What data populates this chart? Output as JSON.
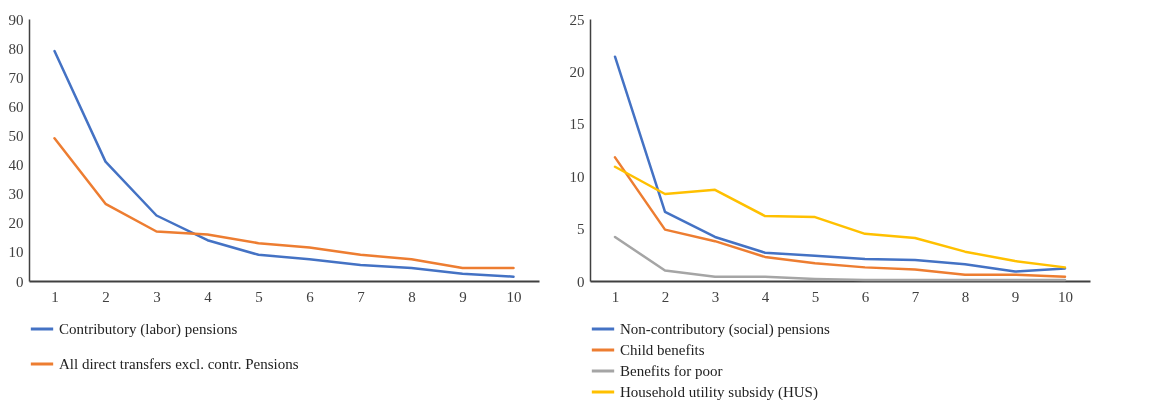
{
  "chart_data": [
    {
      "type": "line",
      "categories": [
        "1",
        "2",
        "3",
        "4",
        "5",
        "6",
        "7",
        "8",
        "9",
        "10"
      ],
      "ylim": [
        0,
        90
      ],
      "yticks": [
        0,
        10,
        20,
        30,
        40,
        50,
        60,
        70,
        80,
        90
      ],
      "grid": false,
      "legend": "bottom",
      "series": [
        {
          "name": "Contributory (labor) pensions",
          "color": "#4472c4",
          "values": [
            79,
            41,
            22.5,
            14,
            9,
            7.5,
            5.5,
            4.5,
            2.5,
            1.5
          ]
        },
        {
          "name": "All direct transfers excl. contr. Pensions",
          "color": "#ed7d31",
          "values": [
            49,
            26.5,
            17,
            16,
            13,
            11.5,
            9,
            7.5,
            4.5,
            4.5
          ]
        }
      ]
    },
    {
      "type": "line",
      "categories": [
        "1",
        "2",
        "3",
        "4",
        "5",
        "6",
        "7",
        "8",
        "9",
        "10"
      ],
      "ylim": [
        0,
        25
      ],
      "yticks": [
        0,
        5,
        10,
        15,
        20,
        25
      ],
      "grid": false,
      "legend": "bottom",
      "series": [
        {
          "name": "Non-contributory (social) pensions",
          "color": "#4472c4",
          "values": [
            21.4,
            6.6,
            4.2,
            2.7,
            2.4,
            2.1,
            2.0,
            1.6,
            0.9,
            1.2
          ]
        },
        {
          "name": "Child benefits",
          "color": "#ed7d31",
          "values": [
            11.8,
            4.9,
            3.8,
            2.3,
            1.7,
            1.3,
            1.1,
            0.6,
            0.6,
            0.4
          ]
        },
        {
          "name": "Benefits for poor",
          "color": "#a5a5a5",
          "values": [
            4.2,
            1.0,
            0.4,
            0.4,
            0.2,
            0.1,
            0.1,
            0.1,
            0.1,
            0.1
          ]
        },
        {
          "name": "Household utility subsidy (HUS)",
          "color": "#ffc000",
          "values": [
            10.9,
            8.3,
            8.7,
            6.2,
            6.1,
            4.5,
            4.1,
            2.8,
            1.9,
            1.3
          ]
        }
      ]
    }
  ]
}
